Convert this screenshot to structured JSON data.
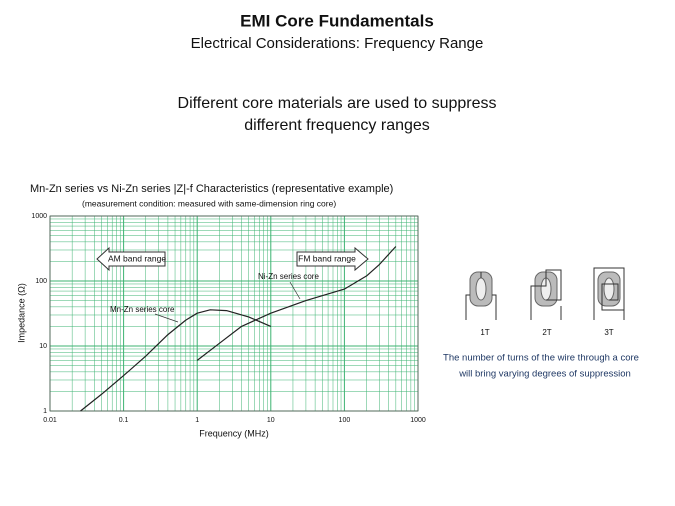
{
  "slide": {
    "title": "EMI Core Fundamentals",
    "subtitle": "Electrical Considerations: Frequency Range",
    "heading": [
      "Different core materials are used to suppress",
      "different frequency ranges"
    ],
    "turns": [
      "1T",
      "2T",
      "3T"
    ],
    "caption": [
      "The number of turns of the wire through a core",
      "will bring varying degrees of suppression"
    ]
  },
  "chart_data": {
    "type": "line",
    "title": "Mn-Zn series vs Ni-Zn series |Z|-f Characteristics (representative example)",
    "subtitle": "(measurement condition: measured with same-dimension ring core)",
    "x_label": "Frequency (MHz)",
    "y_label": "Impedance (Ω)",
    "xscale": "log",
    "yscale": "log",
    "xlim": [
      0.01,
      1000
    ],
    "ylim": [
      1,
      1000
    ],
    "xticks": [
      0.01,
      0.1,
      1,
      10,
      100,
      1000
    ],
    "yticks": [
      1,
      10,
      100,
      1000
    ],
    "grid": true,
    "minor_grid": true,
    "grid_color": "#3cb371",
    "annotations": [
      "AM band range",
      "FM band range"
    ],
    "series": [
      {
        "name": "Mn-Zn series core",
        "color": "#222222",
        "x": [
          0.026,
          0.05,
          0.1,
          0.2,
          0.4,
          0.7,
          1,
          1.5,
          2.5,
          5,
          10
        ],
        "values": [
          1,
          1.8,
          3.5,
          7,
          15,
          25,
          32,
          36,
          35,
          28,
          20
        ]
      },
      {
        "name": "Ni-Zn series core",
        "color": "#222222",
        "x": [
          1,
          2,
          4,
          10,
          30,
          100,
          200,
          300,
          500
        ],
        "values": [
          6,
          11,
          20,
          32,
          50,
          75,
          120,
          180,
          340
        ]
      }
    ]
  }
}
